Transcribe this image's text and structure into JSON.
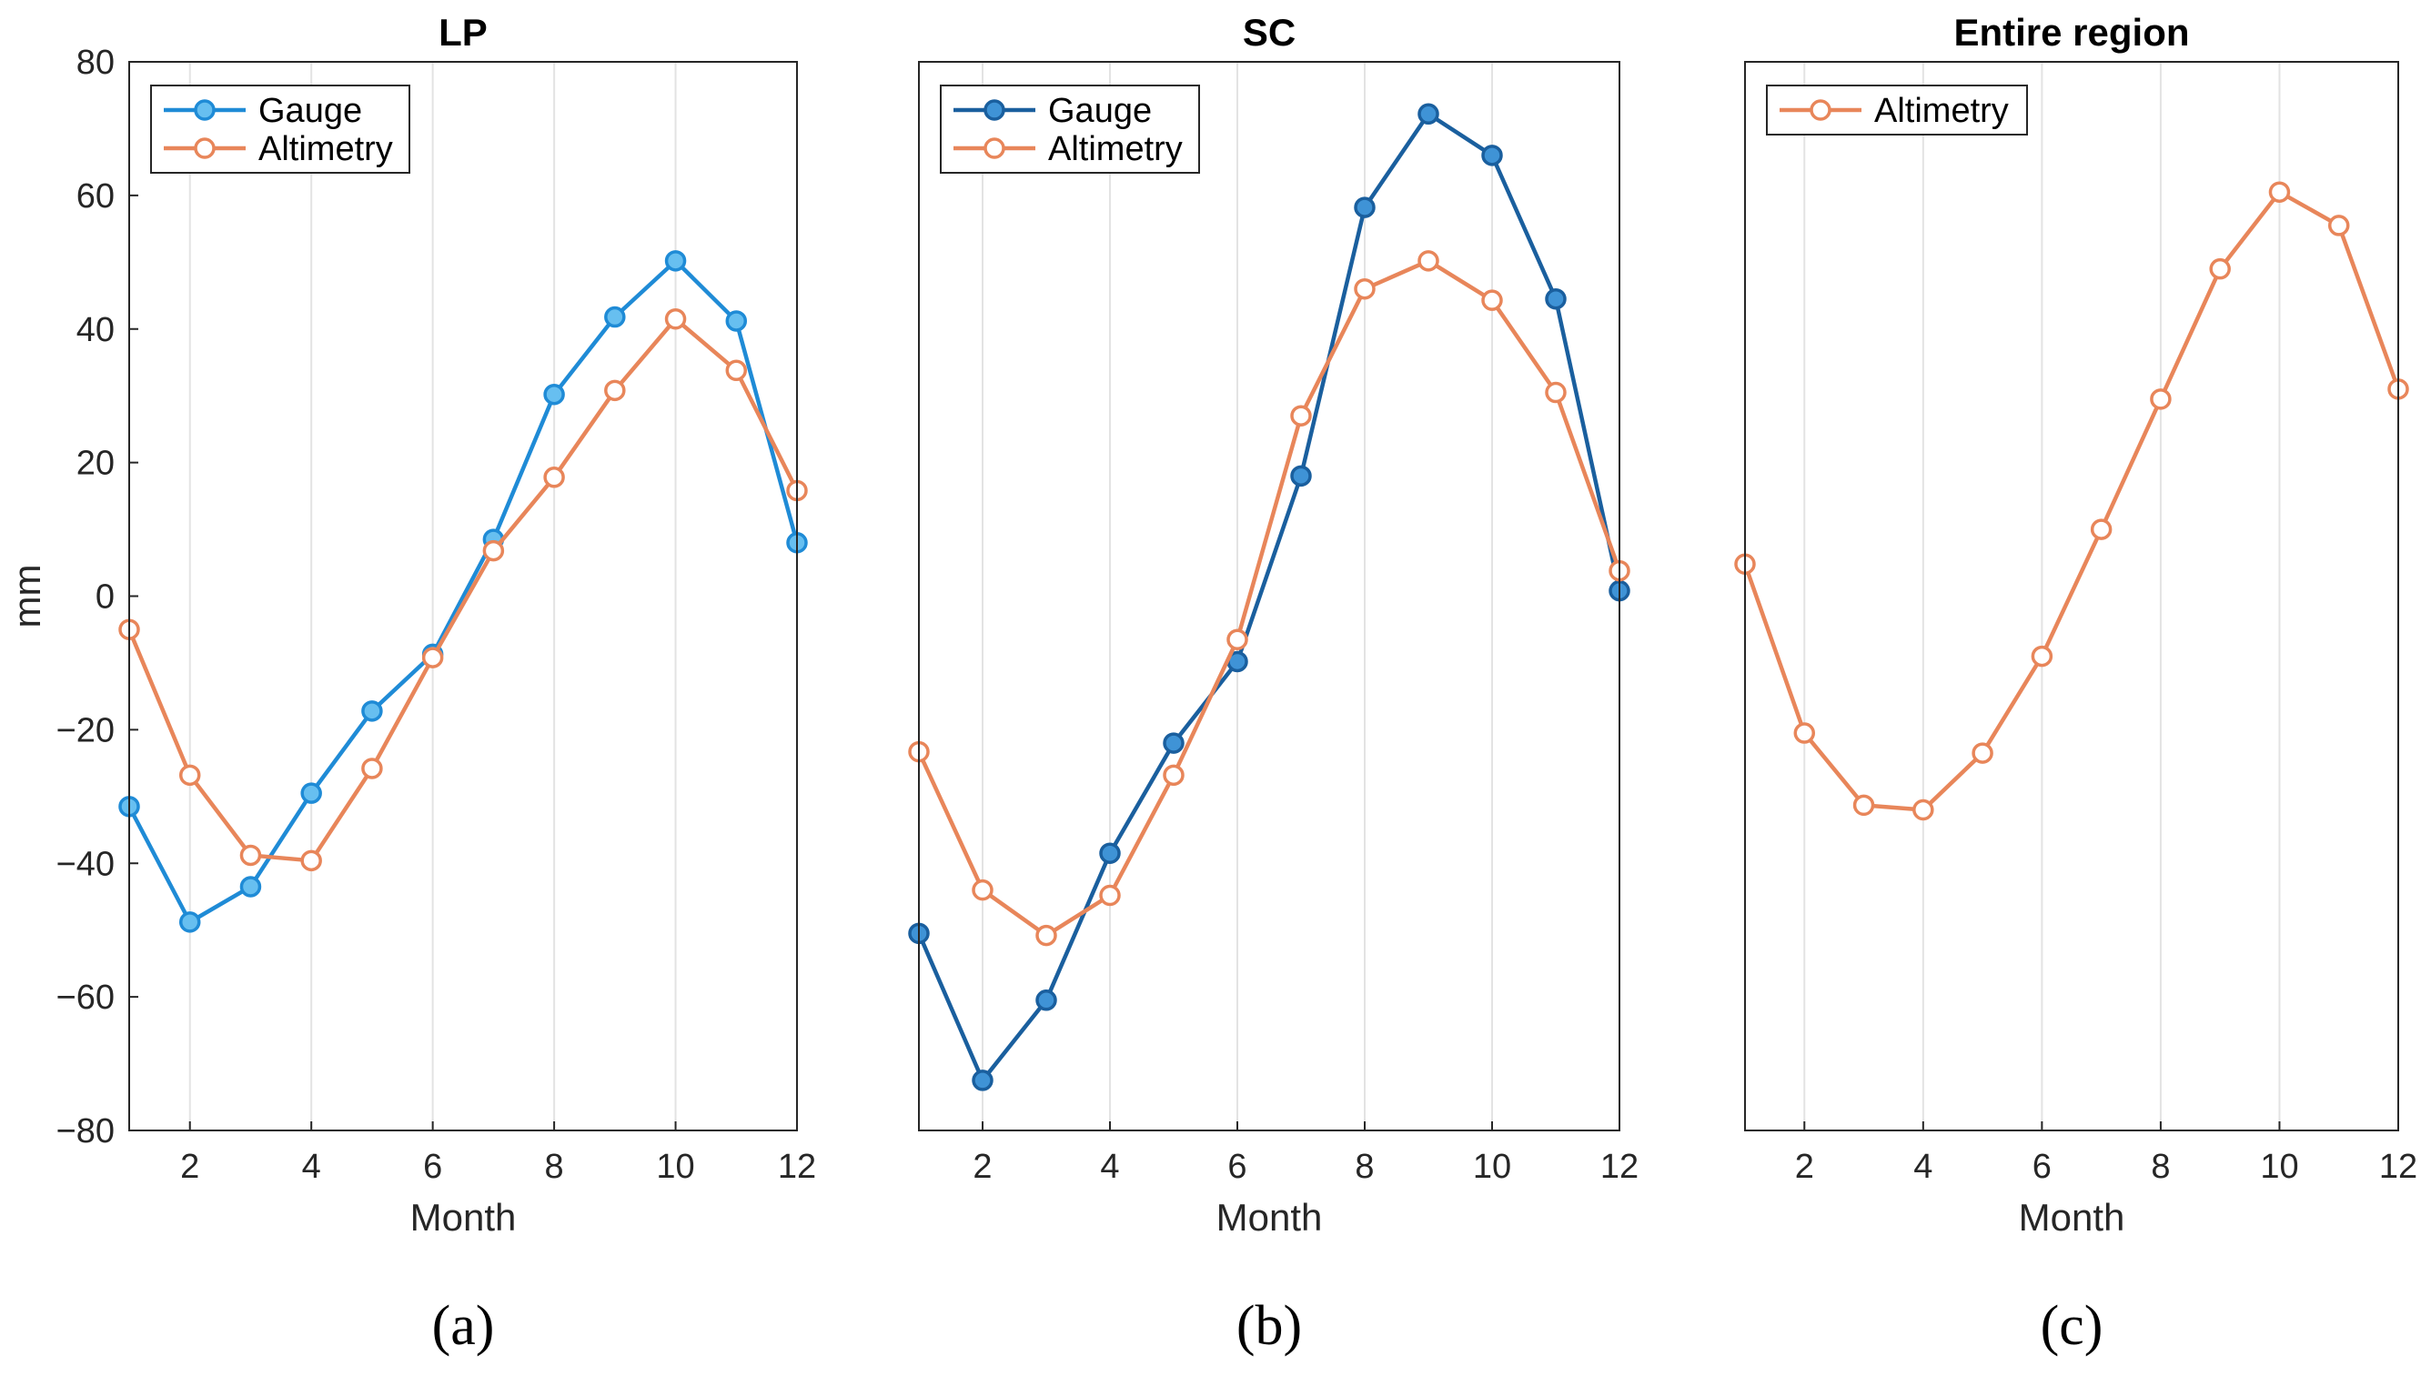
{
  "chart_data": [
    {
      "type": "line",
      "title": "LP",
      "xlabel": "Month",
      "ylabel": "mm",
      "xlim": [
        1,
        12
      ],
      "ylim": [
        -80,
        80
      ],
      "xticks": [
        "2",
        "4",
        "6",
        "8",
        "10",
        "12"
      ],
      "yticks": [
        "80",
        "60",
        "40",
        "20",
        "0",
        "−20",
        "−40",
        "−60",
        "−80"
      ],
      "grid": "x",
      "legend": "top-left",
      "caption": "(a)",
      "x": [
        1,
        2,
        3,
        4,
        5,
        6,
        7,
        8,
        9,
        10,
        11,
        12
      ],
      "series": [
        {
          "name": "Gauge",
          "color": "#1f8bd6",
          "marker_fill": "#67bff0",
          "values": [
            -31.5,
            -48.8,
            -43.5,
            -29.5,
            -17.2,
            -8.7,
            8.5,
            30.2,
            41.8,
            50.2,
            41.2,
            8.0
          ]
        },
        {
          "name": "Altimetry",
          "color": "#e8865a",
          "marker_fill": "#ffffff",
          "values": [
            -5.0,
            -26.8,
            -38.8,
            -39.6,
            -25.8,
            -9.2,
            6.8,
            17.8,
            30.8,
            41.5,
            33.8,
            15.8
          ]
        }
      ]
    },
    {
      "type": "line",
      "title": "SC",
      "xlabel": "Month",
      "ylabel": "",
      "xlim": [
        1,
        12
      ],
      "ylim": [
        -80,
        80
      ],
      "xticks": [
        "2",
        "4",
        "6",
        "8",
        "10",
        "12"
      ],
      "yticks": [],
      "grid": "x",
      "legend": "top-left",
      "caption": "(b)",
      "x": [
        1,
        2,
        3,
        4,
        5,
        6,
        7,
        8,
        9,
        10,
        11,
        12
      ],
      "series": [
        {
          "name": "Gauge",
          "color": "#1a5f9e",
          "marker_fill": "#3f93d6",
          "values": [
            -50.5,
            -72.5,
            -60.5,
            -38.5,
            -22.0,
            -9.8,
            18.0,
            58.2,
            72.2,
            66.0,
            44.5,
            0.8
          ]
        },
        {
          "name": "Altimetry",
          "color": "#e8865a",
          "marker_fill": "#ffffff",
          "values": [
            -23.3,
            -44.0,
            -50.8,
            -44.8,
            -26.8,
            -6.5,
            27.0,
            46.0,
            50.2,
            44.3,
            30.5,
            3.8
          ]
        }
      ]
    },
    {
      "type": "line",
      "title": "Entire region",
      "xlabel": "Month",
      "ylabel": "",
      "xlim": [
        1,
        12
      ],
      "ylim": [
        -80,
        80
      ],
      "xticks": [
        "2",
        "4",
        "6",
        "8",
        "10",
        "12"
      ],
      "yticks": [],
      "grid": "x",
      "legend": "top-left",
      "caption": "(c)",
      "x": [
        1,
        2,
        3,
        4,
        5,
        6,
        7,
        8,
        9,
        10,
        11,
        12
      ],
      "series": [
        {
          "name": "Altimetry",
          "color": "#e8865a",
          "marker_fill": "#ffffff",
          "values": [
            4.8,
            -20.5,
            -31.3,
            -32.0,
            -23.5,
            -9.0,
            10.0,
            29.5,
            49.0,
            60.5,
            55.5,
            31.0
          ]
        }
      ]
    }
  ]
}
